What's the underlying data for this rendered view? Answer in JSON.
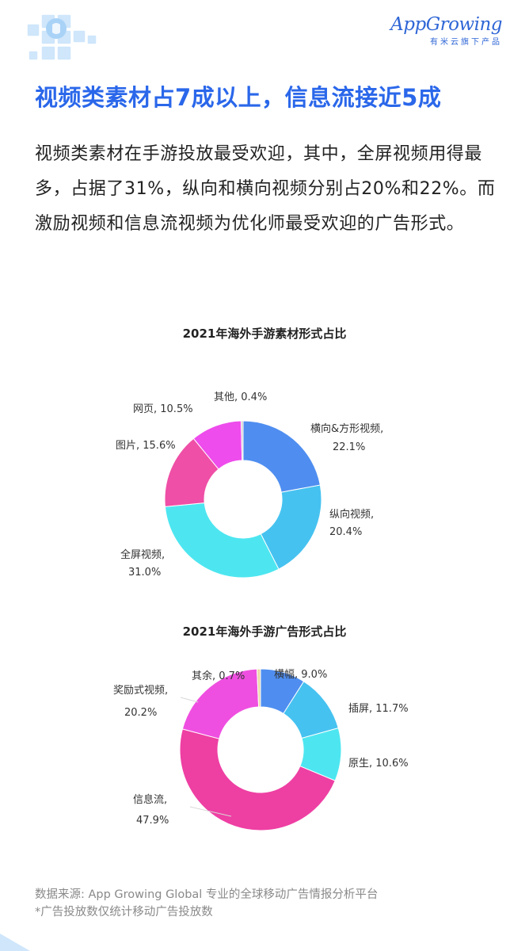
{
  "brand": {
    "logo_text": "AppGrowing",
    "logo_sub": "有米云旗下产品"
  },
  "headline": "视频类素材占7成以上，信息流接近5成",
  "intro": "视频类素材在手游投放最受欢迎，其中，全屏视频用得最多，占据了31%，纵向和横向视频分别占20%和22%。而激励视频和信息流视频为优化师最受欢迎的广告形式。",
  "chart_data": [
    {
      "type": "pie",
      "donut": true,
      "title": "2021年海外手游素材形式占比",
      "categories": [
        "横向&方形视频",
        "纵向视频",
        "全屏视频",
        "图片",
        "网页",
        "其他"
      ],
      "values": [
        22.1,
        20.4,
        31.0,
        15.6,
        10.5,
        0.4
      ],
      "labels": [
        "横向&方形视频,",
        "22.1%",
        "纵向视频,",
        "20.4%",
        "全屏视频,",
        "31.0%",
        "图片, 15.6%",
        "网页, 10.5%",
        "其他, 0.4%"
      ],
      "colors": [
        "#4f8ef0",
        "#46c2f0",
        "#4de6f0",
        "#ef4fa6",
        "#ee4cec",
        "#c9c9c9"
      ]
    },
    {
      "type": "pie",
      "donut": true,
      "title": "2021年海外手游广告形式占比",
      "categories": [
        "横幅",
        "插屏",
        "原生",
        "信息流",
        "奖励式视频",
        "其余"
      ],
      "values": [
        9.0,
        11.7,
        10.6,
        47.9,
        20.2,
        0.7
      ],
      "labels": [
        "横幅, 9.0%",
        "插屏, 11.7%",
        "原生, 10.6%",
        "信息流,",
        "47.9%",
        "奖励式视频,",
        "20.2%",
        "其余, 0.7%"
      ],
      "colors": [
        "#4f8ef0",
        "#46c2f0",
        "#4de6f0",
        "#ee3fa3",
        "#ef4fe0",
        "#e8d9a8"
      ]
    }
  ],
  "footer": {
    "source": "数据来源: App Growing Global 专业的全球移动广告情报分析平台",
    "note": "*广告投放数仅统计移动广告投放数"
  }
}
